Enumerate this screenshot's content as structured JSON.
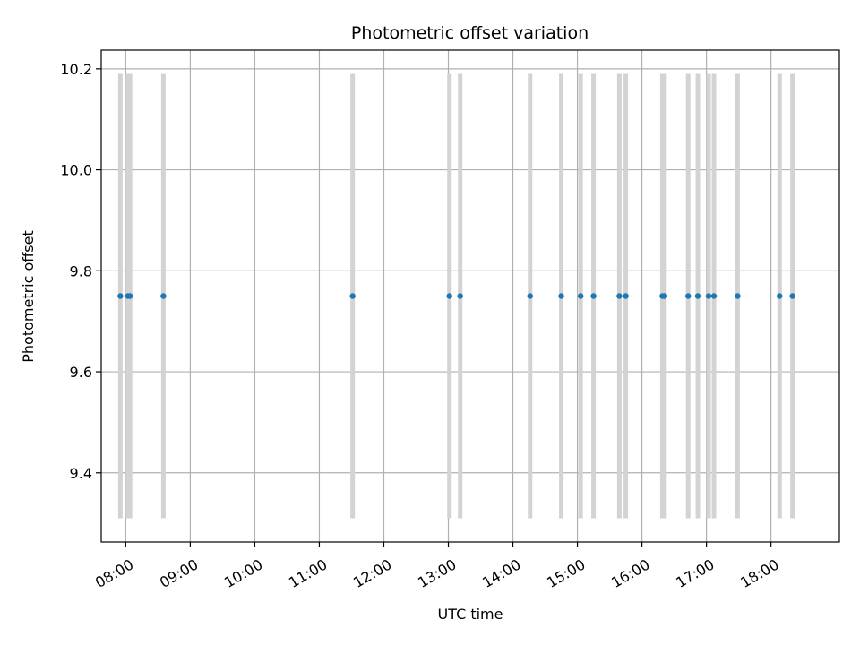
{
  "chart_data": {
    "type": "scatter",
    "title": "Photometric offset variation",
    "xlabel": "UTC time",
    "ylabel": "Photometric offset",
    "x_unit": "hour of day (UTC)",
    "xlim": [
      7.62,
      19.06
    ],
    "ylim": [
      9.263,
      10.237
    ],
    "x_ticks": [
      8,
      9,
      10,
      11,
      12,
      13,
      14,
      15,
      16,
      17,
      18
    ],
    "x_tick_labels": [
      "08:00",
      "09:00",
      "10:00",
      "11:00",
      "12:00",
      "13:00",
      "14:00",
      "15:00",
      "16:00",
      "17:00",
      "18:00"
    ],
    "y_ticks": [
      9.4,
      9.6,
      9.8,
      10.0,
      10.2
    ],
    "y_tick_labels": [
      "9.4",
      "9.6",
      "9.8",
      "10.0",
      "10.2"
    ],
    "grid": true,
    "colors": {
      "points": "#1f77b4",
      "error_bars": "#d3d3d3",
      "grid": "#b0b0b0"
    },
    "series": [
      {
        "x": [
          "07:55",
          "08:02",
          "08:04",
          "08:35",
          "11:31",
          "13:01",
          "13:11",
          "14:16",
          "14:45",
          "15:03",
          "15:15",
          "15:39",
          "15:45",
          "16:19",
          "16:21",
          "16:43",
          "16:52",
          "17:02",
          "17:07",
          "17:29",
          "18:08",
          "18:20"
        ],
        "y": [
          9.75,
          9.75,
          9.75,
          9.75,
          9.75,
          9.75,
          9.75,
          9.75,
          9.75,
          9.75,
          9.75,
          9.75,
          9.75,
          9.75,
          9.75,
          9.75,
          9.75,
          9.75,
          9.75,
          9.75,
          9.75,
          9.75
        ],
        "error_low": 9.31,
        "error_high": 10.19
      }
    ]
  }
}
